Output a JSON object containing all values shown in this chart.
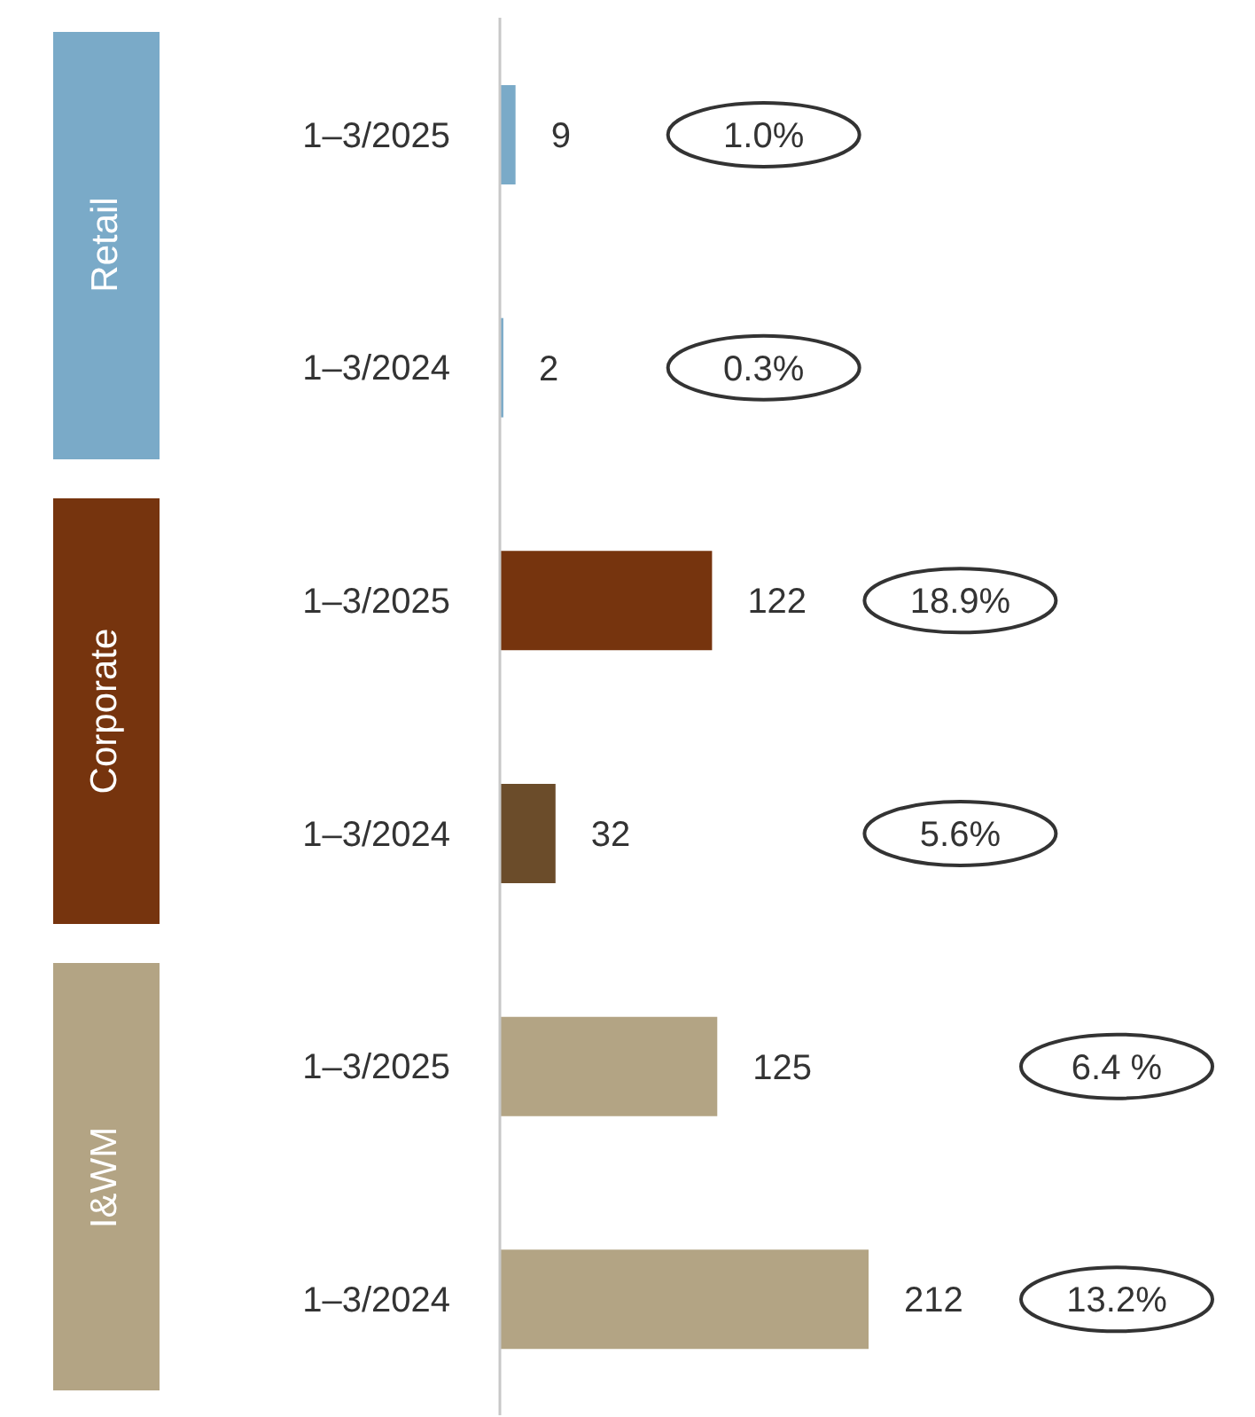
{
  "chart_data": {
    "type": "bar",
    "orientation": "horizontal",
    "categories": [
      "1–3/2025",
      "1–3/2024",
      "1–3/2025",
      "1–3/2024",
      "1–3/2025",
      "1–3/2024"
    ],
    "values": [
      9,
      2,
      122,
      32,
      125,
      212
    ],
    "colors": [
      "#7aaac8",
      "#7aaac8",
      "#76340e",
      "#6b4c2a",
      "#b3a484",
      "#b3a484"
    ],
    "data_labels": true,
    "tick_labels": "y",
    "annotations": [
      "Retail",
      "Corporate",
      "I&WM",
      "1.0%",
      "0.3%",
      "18.9%",
      "5.6%",
      "6.4 %",
      "13.2%"
    ]
  }
}
